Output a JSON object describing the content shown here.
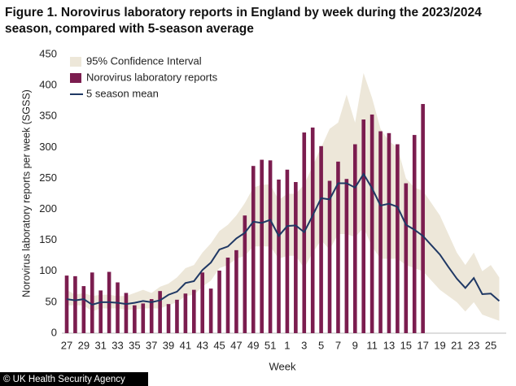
{
  "chart_data": {
    "type": "bar-line-band",
    "title": "Figure 1. Norovirus laboratory reports in England by week during the 2023/2024 season, compared with 5-season average",
    "x_label": "Week",
    "y_label": "Norovirus laboratory reports per week (SGSS)",
    "source": "© UK Health Security Agency",
    "categories": [
      27,
      null,
      29,
      null,
      31,
      null,
      33,
      null,
      35,
      null,
      37,
      null,
      39,
      null,
      41,
      null,
      43,
      null,
      45,
      null,
      47,
      null,
      49,
      null,
      51,
      null,
      1,
      null,
      3,
      null,
      5,
      null,
      7,
      null,
      9,
      null,
      11,
      null,
      13,
      null,
      15,
      null,
      17,
      null,
      19,
      null,
      21,
      null,
      23,
      null,
      25,
      null
    ],
    "ylim": [
      0,
      450
    ],
    "yticks": [
      0,
      50,
      100,
      150,
      200,
      250,
      300,
      350,
      400,
      450
    ],
    "legend": "top-left",
    "series": [
      {
        "name": "95% Confidence Interval",
        "kind": "band",
        "color": "#ede7d9",
        "lower": [
          45,
          45,
          45,
          35,
          40,
          40,
          40,
          38,
          38,
          40,
          40,
          40,
          45,
          50,
          60,
          62,
          75,
          85,
          105,
          110,
          120,
          125,
          140,
          140,
          140,
          120,
          125,
          125,
          105,
          130,
          150,
          135,
          160,
          160,
          155,
          170,
          140,
          120,
          120,
          120,
          110,
          105,
          100,
          85,
          70,
          60,
          50,
          35,
          50,
          30,
          25,
          20
        ],
        "upper": [
          70,
          62,
          65,
          60,
          62,
          62,
          60,
          60,
          65,
          70,
          65,
          75,
          80,
          90,
          105,
          110,
          130,
          145,
          165,
          175,
          190,
          210,
          235,
          240,
          240,
          215,
          225,
          225,
          240,
          270,
          300,
          330,
          340,
          385,
          340,
          420,
          380,
          330,
          310,
          300,
          250,
          235,
          230,
          210,
          190,
          160,
          130,
          110,
          130,
          100,
          110,
          90
        ]
      },
      {
        "name": "Norovirus laboratory reports",
        "kind": "bar",
        "color": "#7b1d4f",
        "values": [
          93,
          92,
          76,
          98,
          69,
          99,
          82,
          65,
          45,
          48,
          55,
          68,
          47,
          54,
          64,
          70,
          98,
          72,
          101,
          122,
          134,
          190,
          270,
          280,
          279,
          248,
          264,
          244,
          324,
          332,
          302,
          246,
          277,
          249,
          305,
          345,
          353,
          326,
          323,
          305,
          242,
          320,
          370,
          null,
          null,
          null,
          null,
          null,
          null,
          null,
          null,
          null
        ]
      },
      {
        "name": "5 season mean",
        "kind": "line",
        "color": "#1f3864",
        "values": [
          55,
          53,
          55,
          46,
          50,
          50,
          49,
          47,
          49,
          52,
          50,
          53,
          62,
          67,
          81,
          84,
          102,
          114,
          135,
          140,
          153,
          162,
          180,
          178,
          183,
          157,
          173,
          174,
          163,
          190,
          218,
          216,
          242,
          242,
          235,
          257,
          234,
          206,
          209,
          204,
          175,
          167,
          157,
          142,
          127,
          107,
          88,
          73,
          89,
          63,
          64,
          52
        ]
      }
    ]
  }
}
